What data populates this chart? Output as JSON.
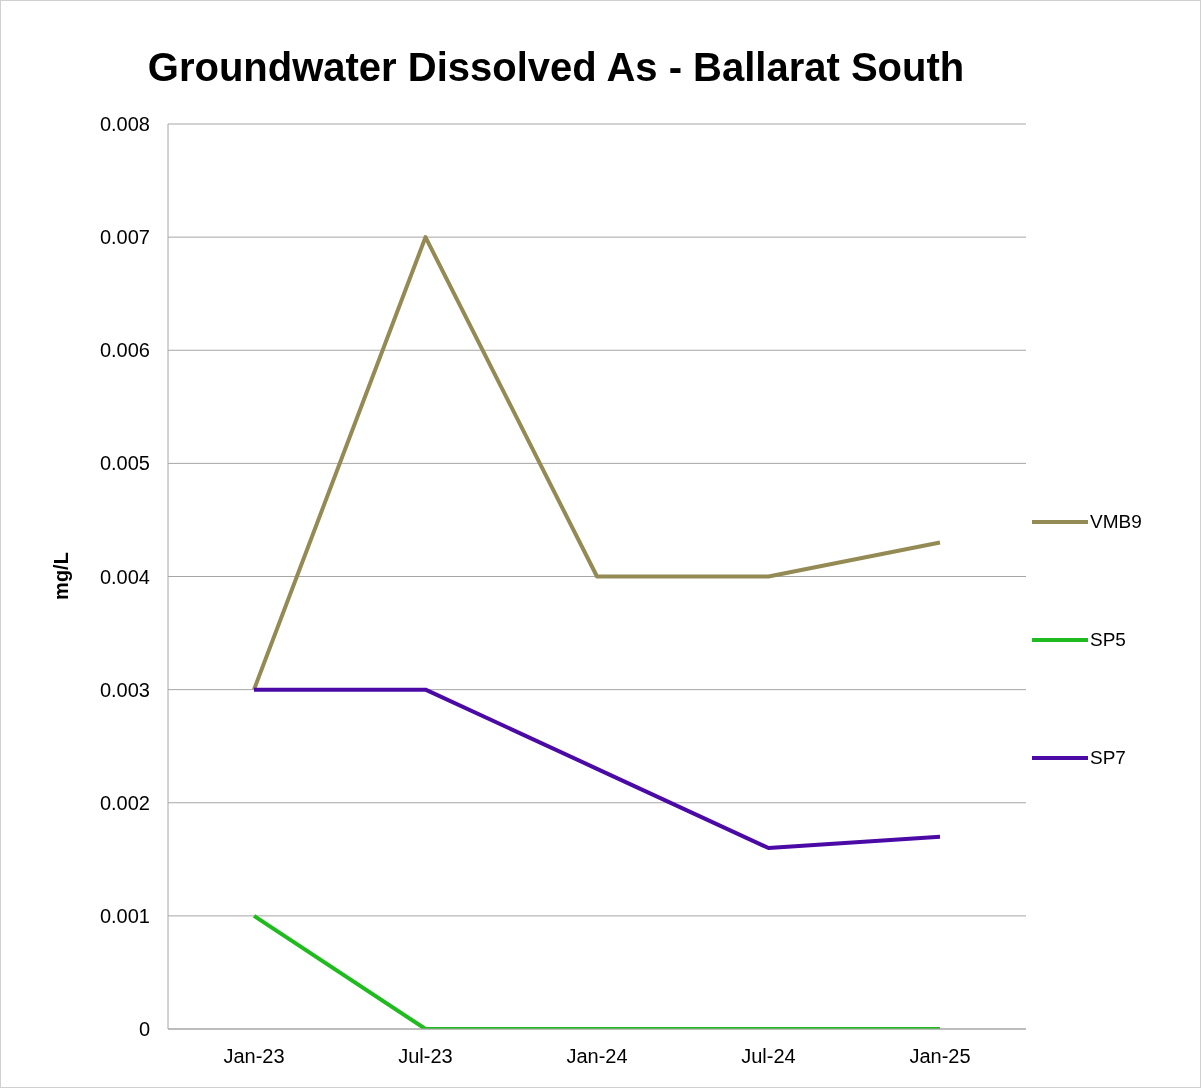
{
  "chart_data": {
    "type": "line",
    "title": "Groundwater Dissolved As - Ballarat South",
    "ylabel": "mg/L",
    "categories": [
      "Jan-23",
      "Jul-23",
      "Jan-24",
      "Jul-24",
      "Jan-25"
    ],
    "series": [
      {
        "name": "VMB9",
        "color": "#948a54",
        "values": [
          0.003,
          0.007,
          0.004,
          0.004,
          0.0043
        ]
      },
      {
        "name": "SP5",
        "color": "#1fbb1f",
        "values": [
          0.001,
          0,
          0,
          0,
          0
        ]
      },
      {
        "name": "SP7",
        "color": "#4b0aa6",
        "values": [
          0.003,
          0.003,
          0.0023,
          0.0016,
          0.0017
        ]
      }
    ],
    "ylim": [
      0,
      0.008
    ],
    "yticks": [
      0,
      0.001,
      0.002,
      0.003,
      0.004,
      0.005,
      0.006,
      0.007,
      0.008
    ],
    "grid": "y",
    "legend": "right",
    "marker": "none",
    "line_style": "solid"
  }
}
